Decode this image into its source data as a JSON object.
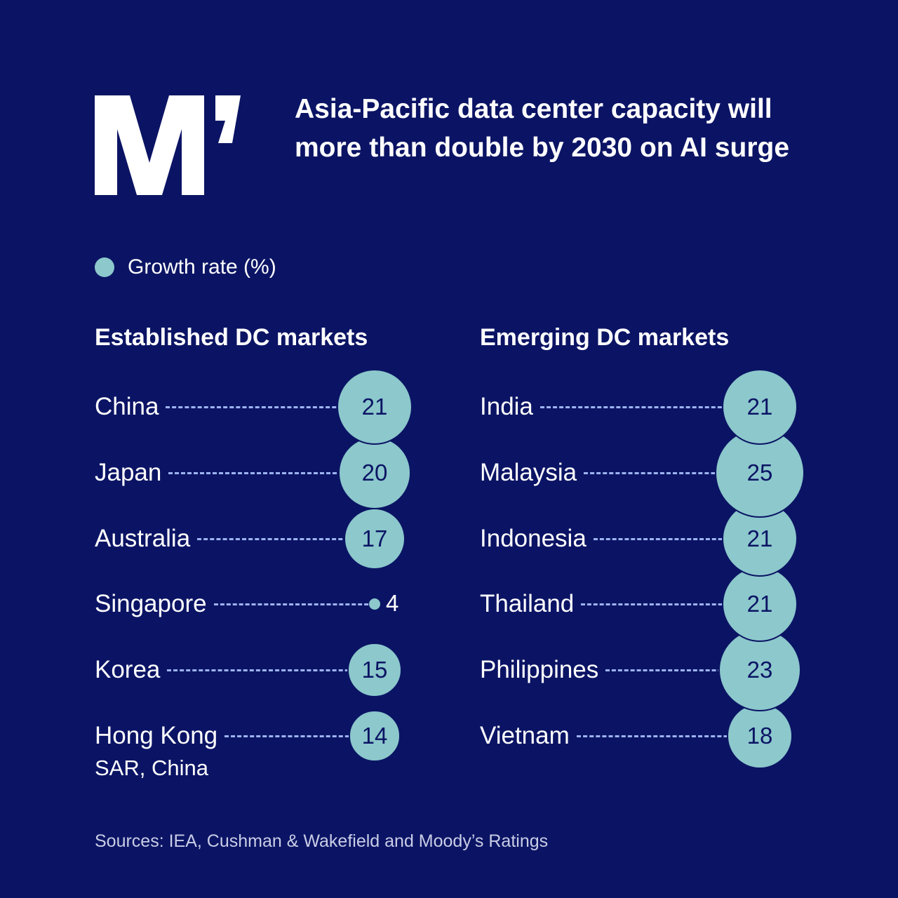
{
  "logo": {
    "text": "M’"
  },
  "title": "Asia-Pacific data center capacity will more than double by 2030 on AI surge",
  "legend": {
    "label": "Growth rate (%)",
    "color": "#8cc8cc"
  },
  "colors": {
    "background": "#0b1464",
    "bubble": "#8cc8cc",
    "dash": "#9db3f0"
  },
  "chart_data": [
    {
      "type": "bubble",
      "title": "Established DC markets",
      "unit": "Growth rate (%)",
      "categories": [
        "China",
        "Japan",
        "Australia",
        "Singapore",
        "Korea",
        "Hong Kong"
      ],
      "sublabels": [
        "",
        "",
        "",
        "",
        "",
        "SAR, China"
      ],
      "values": [
        21,
        20,
        17,
        4,
        15,
        14
      ]
    },
    {
      "type": "bubble",
      "title": "Emerging DC markets",
      "unit": "Growth rate (%)",
      "categories": [
        "India",
        "Malaysia",
        "Indonesia",
        "Thailand",
        "Philippines",
        "Vietnam"
      ],
      "sublabels": [
        "",
        "",
        "",
        "",
        "",
        ""
      ],
      "values": [
        21,
        25,
        21,
        21,
        23,
        18
      ]
    }
  ],
  "source": "Sources: IEA, Cushman & Wakefield and Moody’s Ratings"
}
